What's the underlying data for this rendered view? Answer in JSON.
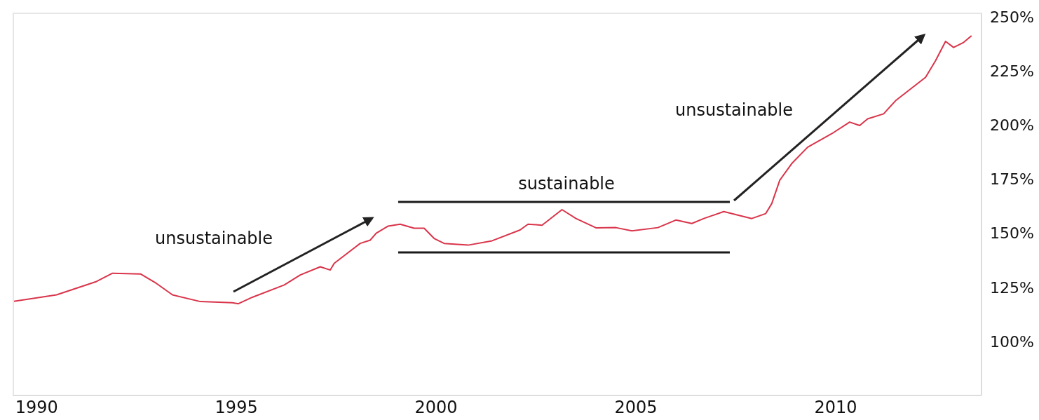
{
  "chart_data": {
    "type": "line",
    "xlim": [
      1989.4,
      2013.65
    ],
    "xticks": [
      1990,
      1995,
      2000,
      2005,
      2010
    ],
    "ylim": [
      75,
      252
    ],
    "yticks": [
      {
        "value": 100,
        "label": "100%"
      },
      {
        "value": 125,
        "label": "125%"
      },
      {
        "value": 150,
        "label": "150%"
      },
      {
        "value": 175,
        "label": "175%"
      },
      {
        "value": 200,
        "label": "200%"
      },
      {
        "value": 225,
        "label": "225%"
      },
      {
        "value": 250,
        "label": "250%"
      }
    ],
    "grid": false,
    "legend": false,
    "line_style": "solid",
    "marker": "none",
    "series": [
      {
        "color": "#d9344a",
        "x": [
          1989.4,
          1990.5,
          1991.5,
          1991.9,
          1992.6,
          1993.0,
          1993.4,
          1994.1,
          1994.9,
          1995.05,
          1995.4,
          1996.2,
          1996.6,
          1997.1,
          1997.35,
          1997.45,
          1998.1,
          1998.35,
          1998.5,
          1998.8,
          1999.1,
          1999.45,
          1999.7,
          1999.95,
          2000.2,
          2000.8,
          2001.4,
          2002.1,
          2002.3,
          2002.65,
          2003.15,
          2003.5,
          2004.0,
          2004.5,
          2004.9,
          2005.55,
          2006.0,
          2006.4,
          2006.7,
          2007.2,
          2007.55,
          2007.9,
          2008.25,
          2008.4,
          2008.6,
          2008.9,
          2009.3,
          2009.9,
          2010.35,
          2010.6,
          2010.8,
          2011.2,
          2011.5,
          2012.25,
          2012.5,
          2012.75,
          2012.95,
          2013.2,
          2013.4
        ],
        "values": [
          118.4,
          121.5,
          127.7,
          131.5,
          131.2,
          126.8,
          121.5,
          118.4,
          117.9,
          117.4,
          120.4,
          126.1,
          130.7,
          134.5,
          133.0,
          136.1,
          145.3,
          146.8,
          150.0,
          153.3,
          154.2,
          152.3,
          152.3,
          147.6,
          145.3,
          144.5,
          146.5,
          151.5,
          154.2,
          153.7,
          160.9,
          156.8,
          152.5,
          152.6,
          151.1,
          152.6,
          156.1,
          154.5,
          156.8,
          160.0,
          158.4,
          156.8,
          159.1,
          163.7,
          174.5,
          182.2,
          189.8,
          196.0,
          201.4,
          199.8,
          202.9,
          205.2,
          211.3,
          222.1,
          229.8,
          238.7,
          235.9,
          238.2,
          241.3
        ]
      },
      {
        "color": "#1a1a1a",
        "x": [
          1999.05,
          2007.35
        ],
        "values": [
          164.5,
          164.5
        ]
      },
      {
        "color": "#1a1a1a",
        "x": [
          1999.05,
          2007.35
        ],
        "values": [
          141.1,
          141.1
        ]
      }
    ],
    "annotations": [
      "unsustainable",
      "sustainable",
      "unsustainable"
    ]
  }
}
